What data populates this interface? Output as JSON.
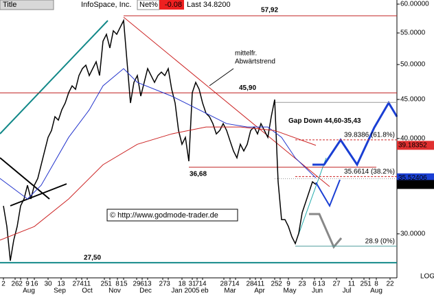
{
  "header": {
    "title_label": "Title",
    "symbol": "InfoSpace, Inc.",
    "net_label": "Net%",
    "net": "-0.08",
    "last": "Last 34.8200"
  },
  "chart_data": {
    "type": "line",
    "log_scale": true,
    "scale_label": "LOG",
    "xlim": [
      0,
      231.2
    ],
    "ylim": [
      26.27,
      60.75
    ],
    "yticks": [
      {
        "value": 60,
        "label": "60.00000"
      },
      {
        "value": 55,
        "label": "55.0000"
      },
      {
        "value": 50,
        "label": "50.0000"
      },
      {
        "value": 45,
        "label": "45.0000"
      },
      {
        "value": 40,
        "label": "40.0000"
      },
      {
        "value": 30,
        "label": "30.0000"
      }
    ],
    "xticks": [
      {
        "value": 2,
        "label": "2"
      },
      {
        "value": 8.8,
        "label": "26"
      },
      {
        "value": 12,
        "label": "2"
      },
      {
        "value": 16,
        "label": "9"
      },
      {
        "value": 20,
        "label": "16"
      },
      {
        "value": 28,
        "label": "30"
      },
      {
        "value": 35.6,
        "label": "13"
      },
      {
        "value": 44.4,
        "label": "27"
      },
      {
        "value": 47.6,
        "label": "4"
      },
      {
        "value": 50.8,
        "label": "11"
      },
      {
        "value": 60.8,
        "label": "25"
      },
      {
        "value": 64,
        "label": "1"
      },
      {
        "value": 68.4,
        "label": "8"
      },
      {
        "value": 72,
        "label": "15"
      },
      {
        "value": 79.6,
        "label": "29"
      },
      {
        "value": 82.8,
        "label": "6"
      },
      {
        "value": 86,
        "label": "13"
      },
      {
        "value": 94.8,
        "label": "27"
      },
      {
        "value": 98,
        "label": "3"
      },
      {
        "value": 106,
        "label": "18"
      },
      {
        "value": 112,
        "label": "31"
      },
      {
        "value": 114.8,
        "label": "7"
      },
      {
        "value": 118,
        "label": "14"
      },
      {
        "value": 130.4,
        "label": "28"
      },
      {
        "value": 134,
        "label": "7"
      },
      {
        "value": 137.2,
        "label": "14"
      },
      {
        "value": 145.6,
        "label": "28"
      },
      {
        "value": 148.8,
        "label": "4"
      },
      {
        "value": 152,
        "label": "11"
      },
      {
        "value": 160,
        "label": "25"
      },
      {
        "value": 163.2,
        "label": "2"
      },
      {
        "value": 168,
        "label": "9"
      },
      {
        "value": 176,
        "label": "23"
      },
      {
        "value": 183.2,
        "label": "6"
      },
      {
        "value": 187.2,
        "label": "13"
      },
      {
        "value": 196,
        "label": "27"
      },
      {
        "value": 204.8,
        "label": "11"
      },
      {
        "value": 212,
        "label": "25"
      },
      {
        "value": 215.2,
        "label": "1"
      },
      {
        "value": 219.2,
        "label": "8"
      },
      {
        "value": 227.2,
        "label": "22"
      }
    ],
    "months": [
      {
        "value": 16.8,
        "label": "Aug"
      },
      {
        "value": 34.8,
        "label": "Sep"
      },
      {
        "value": 50.8,
        "label": "Oct"
      },
      {
        "value": 66.8,
        "label": "Nov"
      },
      {
        "value": 84.8,
        "label": "Dec"
      },
      {
        "value": 108,
        "label": "Jan 2005"
      },
      {
        "value": 119.2,
        "label": "eb"
      },
      {
        "value": 134,
        "label": "Mar"
      },
      {
        "value": 151.2,
        "label": "Apr"
      },
      {
        "value": 168.8,
        "label": "May"
      },
      {
        "value": 184.8,
        "label": "Jun"
      },
      {
        "value": 202,
        "label": "Jul"
      },
      {
        "value": 219.2,
        "label": "Aug"
      }
    ],
    "series": [
      {
        "color": "#000000",
        "x": [
          2,
          4,
          6,
          8,
          10,
          12,
          14,
          16,
          18,
          20,
          22,
          24,
          26,
          28,
          30,
          32,
          34,
          36,
          38,
          40,
          42,
          44,
          46,
          48,
          50,
          52,
          54,
          56,
          58,
          60,
          62,
          64,
          66,
          68,
          70,
          72,
          74,
          76,
          78,
          80,
          82,
          84,
          86,
          88,
          90,
          92,
          94,
          96,
          98,
          100,
          102,
          104,
          106,
          108,
          110,
          112,
          114,
          116,
          118,
          120,
          122,
          124,
          126,
          128,
          130,
          132,
          134,
          136,
          138,
          140,
          142,
          144,
          146,
          148,
          150,
          152,
          154,
          156,
          158,
          160,
          162,
          164,
          166,
          168,
          170,
          172,
          174,
          176,
          178,
          180,
          182,
          184
        ],
        "values": [
          32.64,
          30.67,
          27.66,
          29.44,
          30.67,
          32.64,
          33.33,
          34.74,
          33.33,
          34.74,
          35.46,
          36.96,
          38.52,
          40.14,
          40.98,
          42.72,
          42.28,
          43.61,
          44.53,
          45.93,
          46.89,
          46.41,
          48.37,
          49.39,
          49.9,
          48.37,
          49.39,
          50.42,
          48.37,
          53.66,
          54.78,
          52.56,
          55.36,
          54.78,
          55.93,
          57.1,
          50.42,
          44.53,
          47.38,
          48.37,
          45.46,
          47.38,
          49.39,
          48.37,
          47.38,
          48.37,
          48.87,
          48.37,
          49.39,
          46.41,
          44.53,
          40.98,
          39.31,
          40.14,
          37.35,
          45.93,
          47.38,
          46.41,
          44.53,
          43.16,
          42.72,
          41.84,
          40.56,
          40.98,
          41.84,
          40.98,
          39.72,
          38.52,
          37.73,
          39.31,
          38.52,
          39.31,
          40.98,
          41.41,
          40.56,
          41.84,
          40.98,
          40.14,
          42.72,
          44.99,
          35.1,
          31.32,
          31.32,
          30.67,
          29.74,
          29.13,
          30.05,
          31.97,
          32.98,
          34.02,
          35.1,
          34.82
        ]
      },
      {
        "color": "#2233cc",
        "x": [
          0,
          16,
          24,
          40,
          52,
          60,
          72,
          80,
          100,
          108,
          120,
          132,
          144,
          156,
          164,
          172,
          184
        ],
        "values": [
          35.46,
          33.33,
          34.74,
          40.14,
          43.61,
          46.89,
          49.39,
          47.38,
          45.46,
          44.53,
          43.16,
          41.84,
          41.41,
          41.41,
          40.14,
          37.73,
          35.52
        ]
      },
      {
        "color": "#cc2222",
        "x": [
          0,
          20,
          40,
          60,
          80,
          100,
          120,
          140,
          160,
          184
        ],
        "values": [
          29.44,
          30.67,
          33.33,
          36.96,
          39.31,
          40.56,
          41.41,
          41.41,
          40.98,
          39.18
        ]
      }
    ],
    "levels": [
      {
        "value": 57.92,
        "label": "57,92",
        "color": "#c02020"
      },
      {
        "value": 45.9,
        "label": "45,90",
        "color": "#c02020"
      },
      {
        "value": 36.68,
        "label": "36,68",
        "color": "#c02020"
      },
      {
        "value": 27.5,
        "label": "27,50",
        "color": "#118888"
      }
    ],
    "fib": [
      {
        "value": 39.8386,
        "label": "39.8386 (61.8%)",
        "color": "#cc2222"
      },
      {
        "value": 35.6614,
        "label": "35.6614 (38.2%)",
        "color": "#cc2222"
      },
      {
        "value": 28.9,
        "label": "28.9 (0%)",
        "color": "#4a9a9a"
      }
    ],
    "gap": {
      "label": "Gap Down 44,60-35,43",
      "top": 44.6,
      "bottom": 35.43
    },
    "price_tags": [
      {
        "value": 39.18352,
        "label": "39.18352",
        "color": "#e03030"
      },
      {
        "value": 35.52406,
        "label": "35.52406",
        "color": "#1a3fd4"
      },
      {
        "value": 34.82,
        "label": "34.8200",
        "color": "#000000"
      }
    ],
    "annotations": [
      "mittelfr.",
      "Abwärtstrend",
      "© http://www.godmode-trader.de"
    ]
  }
}
